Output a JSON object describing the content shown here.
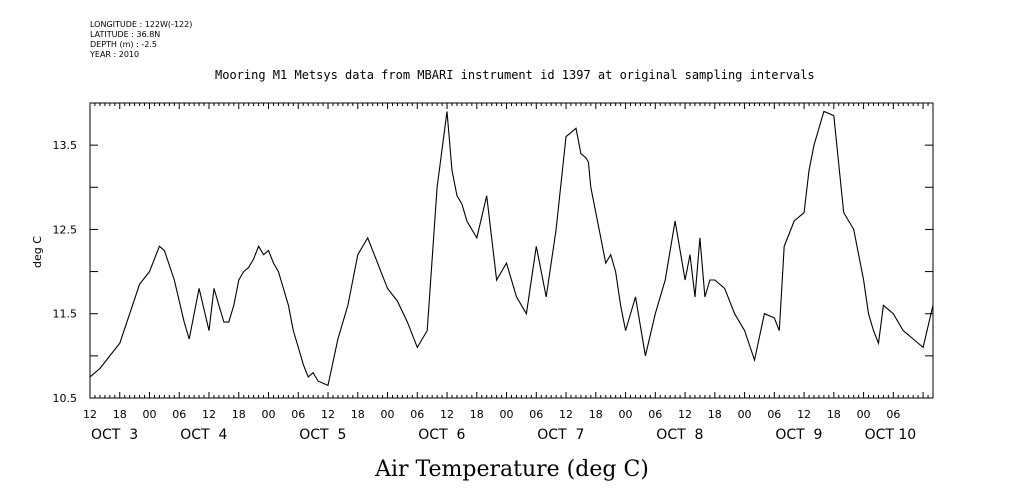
{
  "meta": {
    "longitude": "LONGITUDE : 122W(-122)",
    "latitude": "LATITUDE : 36.8N",
    "depth": "DEPTH (m) : -2.5",
    "year": "YEAR : 2010"
  },
  "chart_data": {
    "type": "line",
    "title": "Mooring M1 Metsys data from MBARI instrument id 1397 at original sampling intervals",
    "xlabel": "Air Temperature (deg C)",
    "ylabel": "deg C",
    "ylim": [
      10.5,
      14.0
    ],
    "yticks": [
      "10.5",
      "11.5",
      "12.5",
      "13.5"
    ],
    "xlim_hours": [
      0,
      170
    ],
    "hour_tick_labels": [
      "12",
      "18",
      "00",
      "06",
      "12",
      "18",
      "00",
      "06",
      "12",
      "18",
      "00",
      "06",
      "12",
      "18",
      "00",
      "06",
      "12",
      "18",
      "00",
      "06",
      "12",
      "18",
      "00",
      "06",
      "12",
      "18",
      "00",
      "06"
    ],
    "day_labels": [
      "OCT  3",
      "OCT  4",
      "OCT  5",
      "OCT  6",
      "OCT  7",
      "OCT  8",
      "OCT  9",
      "OCT 10"
    ],
    "day_label_hours": [
      0,
      18,
      42,
      66,
      90,
      114,
      138,
      156
    ],
    "x_hours_since_oct3_12h": [
      0,
      2,
      4,
      6,
      8,
      10,
      12,
      14,
      15,
      17,
      19,
      20,
      22,
      24,
      25,
      26,
      27,
      28,
      29,
      30,
      31,
      32,
      33,
      34,
      35,
      36,
      37,
      38,
      39,
      40,
      41,
      42,
      43,
      44,
      45,
      46,
      48,
      50,
      52,
      54,
      56,
      58,
      60,
      62,
      64,
      66,
      68,
      70,
      72,
      73,
      74,
      75,
      76,
      77,
      78,
      80,
      82,
      84,
      86,
      88,
      90,
      92,
      94,
      96,
      98,
      99,
      100,
      100.5,
      101,
      102,
      103,
      104,
      105,
      106,
      107,
      108,
      110,
      112,
      114,
      116,
      118,
      120,
      121,
      122,
      123,
      124,
      125,
      126,
      128,
      130,
      132,
      134,
      136,
      138,
      139,
      140,
      142,
      144,
      145,
      146,
      148,
      150,
      152,
      154,
      156,
      157,
      158,
      159,
      160,
      162,
      164,
      166,
      168,
      170
    ],
    "values": [
      10.75,
      10.85,
      11.0,
      11.15,
      11.5,
      11.85,
      12.0,
      12.3,
      12.25,
      11.9,
      11.4,
      11.2,
      11.8,
      11.3,
      11.8,
      11.6,
      11.4,
      11.4,
      11.6,
      11.9,
      12.0,
      12.05,
      12.15,
      12.3,
      12.2,
      12.25,
      12.1,
      12.0,
      11.8,
      11.6,
      11.3,
      11.1,
      10.9,
      10.75,
      10.8,
      10.7,
      10.65,
      11.2,
      11.6,
      12.2,
      12.4,
      12.1,
      11.8,
      11.65,
      11.4,
      11.1,
      11.3,
      13.0,
      13.9,
      13.2,
      12.9,
      12.8,
      12.6,
      12.5,
      12.4,
      12.9,
      11.9,
      12.1,
      11.7,
      11.5,
      12.3,
      11.7,
      12.5,
      13.6,
      13.7,
      13.4,
      13.35,
      13.3,
      13.0,
      12.7,
      12.4,
      12.1,
      12.2,
      12.0,
      11.6,
      11.3,
      11.7,
      11.0,
      11.5,
      11.9,
      12.6,
      11.9,
      12.2,
      11.7,
      12.4,
      11.7,
      11.9,
      11.9,
      11.8,
      11.5,
      11.3,
      10.95,
      11.5,
      11.45,
      11.3,
      12.3,
      12.6,
      12.7,
      13.2,
      13.5,
      13.9,
      13.85,
      12.7,
      12.5,
      11.9,
      11.5,
      11.3,
      11.15,
      11.6,
      11.5,
      11.3,
      11.2,
      11.1,
      11.6
    ]
  }
}
